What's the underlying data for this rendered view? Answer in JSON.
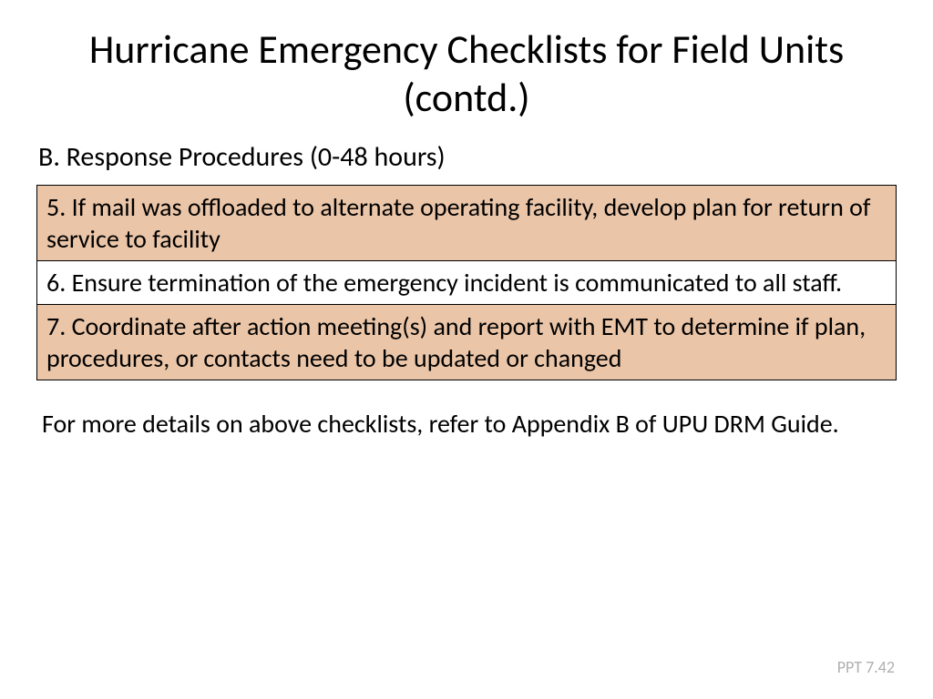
{
  "title": "Hurricane Emergency Checklists for Field Units (contd.)",
  "subtitle": "B. Response Procedures (0-48 hours)",
  "table": {
    "row_colors": {
      "shaded": "#eac5a8",
      "white": "#ffffff"
    },
    "border_color": "#000000",
    "rows": [
      {
        "text": "5. If mail was offloaded to alternate operating facility, develop plan for return of service to facility",
        "shaded": true
      },
      {
        "text": "6. Ensure termination of the emergency incident is communicated to all staff.",
        "shaded": false
      },
      {
        "text": "7. Coordinate after action meeting(s) and report with EMT to determine if plan, procedures, or contacts need to be updated or changed",
        "shaded": true
      }
    ]
  },
  "footnote": "For more details on above checklists, refer to Appendix B of UPU DRM Guide.",
  "slide_number": "PPT 7.42",
  "typography": {
    "title_fontsize": 44,
    "subtitle_fontsize": 30,
    "body_fontsize": 28,
    "slidenum_fontsize": 18,
    "slidenum_color": "#b0b0b0",
    "text_color": "#000000",
    "background_color": "#ffffff",
    "font_family": "Calibri"
  }
}
